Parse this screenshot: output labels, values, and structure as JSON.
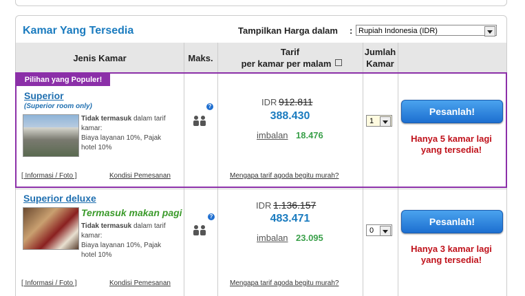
{
  "header": {
    "title": "Kamar Yang Tersedia",
    "currency_label": "Tampilkan Harga dalam",
    "currency_colon": ":",
    "currency_value": "Rupiah Indonesia (IDR)"
  },
  "table": {
    "columns": {
      "room": "Jenis Kamar",
      "max": "Maks.",
      "rate_line1": "Tarif",
      "rate_line2": "per kamar per malam",
      "qty_line1": "Jumlah",
      "qty_line2": "Kamar"
    },
    "rooms": [
      {
        "badge": "Pilihan yang Populer!",
        "name": "Superior",
        "subtitle": "(Superior room only)",
        "tax_bold": "Tidak termasuk",
        "tax_rest": "dalam tarif kamar:",
        "tax_detail": "Biaya layanan 10%, Pajak hotel 10%",
        "info_link": "[ Informasi / Foto ]",
        "conditions_link": "Kondisi Pemesanan",
        "currency": "IDR",
        "old_price": "912.811",
        "price": "388.430",
        "rebate_label": "imbalan",
        "rebate": "18.476",
        "why_link": "Mengapa tarif agoda begitu murah?",
        "quantity": "1",
        "book_button": "Pesanlah!",
        "availability": "Hanya 5 kamar lagi yang tersedia!"
      },
      {
        "name": "Superior deluxe",
        "subtitle": "Termasuk makan pagi",
        "tax_bold": "Tidak termasuk",
        "tax_rest": "dalam tarif kamar:",
        "tax_detail": "Biaya layanan 10%, Pajak hotel 10%",
        "info_link": "[ Informasi / Foto ]",
        "conditions_link": "Kondisi Pemesanan",
        "currency": "IDR",
        "old_price": "1.136.157",
        "price": "483.471",
        "rebate_label": "imbalan",
        "rebate": "23.095",
        "why_link": "Mengapa tarif agoda begitu murah?",
        "quantity": "0",
        "book_button": "Pesanlah!",
        "availability": "Hanya 3 kamar lagi yang tersedia!"
      }
    ]
  }
}
